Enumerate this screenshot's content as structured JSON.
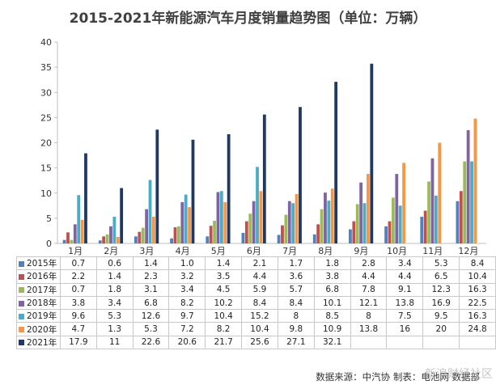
{
  "chart_data": {
    "type": "bar",
    "title": "2015-2021年新能源汽车月度销量趋势图（单位：万辆）",
    "categories": [
      "1月",
      "2月",
      "3月",
      "4月",
      "5月",
      "6月",
      "7月",
      "8月",
      "9月",
      "10月",
      "11月",
      "12月"
    ],
    "ylim": [
      0,
      40
    ],
    "yticks": [
      0,
      5,
      10,
      15,
      20,
      25,
      30,
      35,
      40
    ],
    "grid": false,
    "legend": "table-below",
    "series": [
      {
        "name": "2015年",
        "color": "#4f81bd",
        "values": [
          0.7,
          0.6,
          1.4,
          1.0,
          1.4,
          2.1,
          1.7,
          1.8,
          2.8,
          3.4,
          5.3,
          8.4
        ],
        "labels": [
          "0.7",
          "0.6",
          "1.4",
          "1.0",
          "1.4",
          "2.1",
          "1.7",
          "1.8",
          "2.8",
          "3.4",
          "5.3",
          "8.4"
        ]
      },
      {
        "name": "2016年",
        "color": "#c0504d",
        "values": [
          2.2,
          1.4,
          2.3,
          3.2,
          3.5,
          4.4,
          3.6,
          3.8,
          4.4,
          4.4,
          6.5,
          10.4
        ],
        "labels": [
          "2.2",
          "1.4",
          "2.3",
          "3.2",
          "3.5",
          "4.4",
          "3.6",
          "3.8",
          "4.4",
          "4.4",
          "6.5",
          "10.4"
        ]
      },
      {
        "name": "2017年",
        "color": "#9bbb59",
        "values": [
          0.7,
          1.8,
          3.1,
          3.4,
          4.5,
          5.9,
          5.7,
          6.8,
          7.8,
          9.1,
          12.3,
          16.3
        ],
        "labels": [
          "0.7",
          "1.8",
          "3.1",
          "3.4",
          "4.5",
          "5.9",
          "5.7",
          "6.8",
          "7.8",
          "9.1",
          "12.3",
          "16.3"
        ]
      },
      {
        "name": "2018年",
        "color": "#8064a2",
        "values": [
          3.8,
          3.4,
          6.8,
          8.2,
          10.2,
          8.4,
          8.4,
          10.1,
          12.1,
          13.8,
          16.9,
          22.5
        ],
        "labels": [
          "3.8",
          "3.4",
          "6.8",
          "8.2",
          "10.2",
          "8.4",
          "8.4",
          "10.1",
          "12.1",
          "13.8",
          "16.9",
          "22.5"
        ]
      },
      {
        "name": "2019年",
        "color": "#4bacc6",
        "values": [
          9.6,
          5.3,
          12.6,
          9.7,
          10.4,
          15.2,
          8,
          8.5,
          8,
          7.5,
          9.5,
          16.3
        ],
        "labels": [
          "9.6",
          "5.3",
          "12.6",
          "9.7",
          "10.4",
          "15.2",
          "8",
          "8.5",
          "8",
          "7.5",
          "9.5",
          "16.3"
        ]
      },
      {
        "name": "2020年",
        "color": "#f79646",
        "values": [
          4.7,
          1.3,
          5.3,
          7.2,
          8.2,
          10.4,
          9.8,
          10.9,
          13.8,
          16,
          20,
          24.8
        ],
        "labels": [
          "4.7",
          "1.3",
          "5.3",
          "7.2",
          "8.2",
          "10.4",
          "9.8",
          "10.9",
          "13.8",
          "16",
          "20",
          "24.8"
        ]
      },
      {
        "name": "2021年",
        "color": "#1f3864",
        "values": [
          17.9,
          11,
          22.6,
          20.6,
          21.7,
          25.6,
          27.1,
          32.1,
          35.7,
          null,
          null,
          null
        ],
        "labels": [
          "17.9",
          "11",
          "22.6",
          "20.6",
          "21.7",
          "25.6",
          "27.1",
          "32.1",
          "",
          "",
          "",
          ""
        ]
      }
    ]
  },
  "source_note": "数据来源：中汽协  制表：电池网  数据部",
  "watermark": "新浪财经社区"
}
